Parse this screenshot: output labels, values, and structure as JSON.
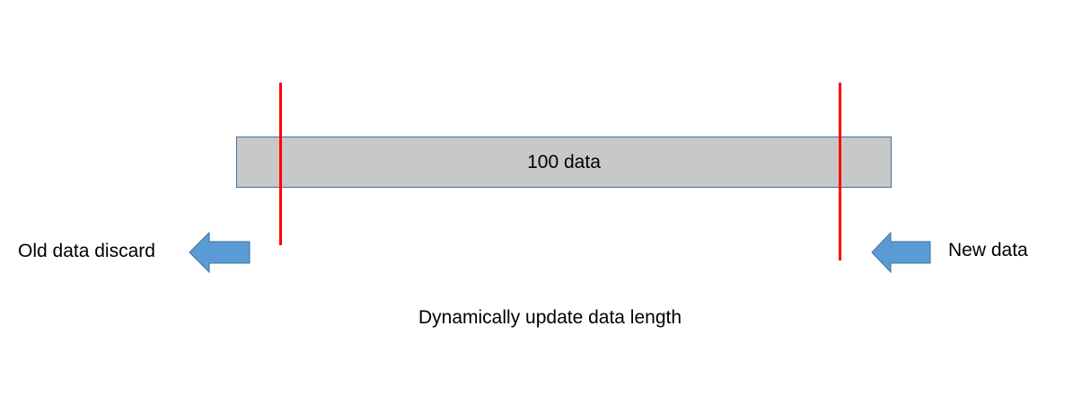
{
  "diagram": {
    "buffer_label": "100 data",
    "left_label": "Old data discard",
    "right_label": "New data",
    "caption": "Dynamically update data length",
    "colors": {
      "bar_fill": "#c8c8c8",
      "bar_border": "#41719c",
      "marker": "#ff0000",
      "arrow_fill": "#5b9bd5",
      "arrow_stroke": "#41719c"
    },
    "icons": {
      "left_arrow": "arrow-left-icon",
      "right_arrow": "arrow-left-icon"
    }
  }
}
